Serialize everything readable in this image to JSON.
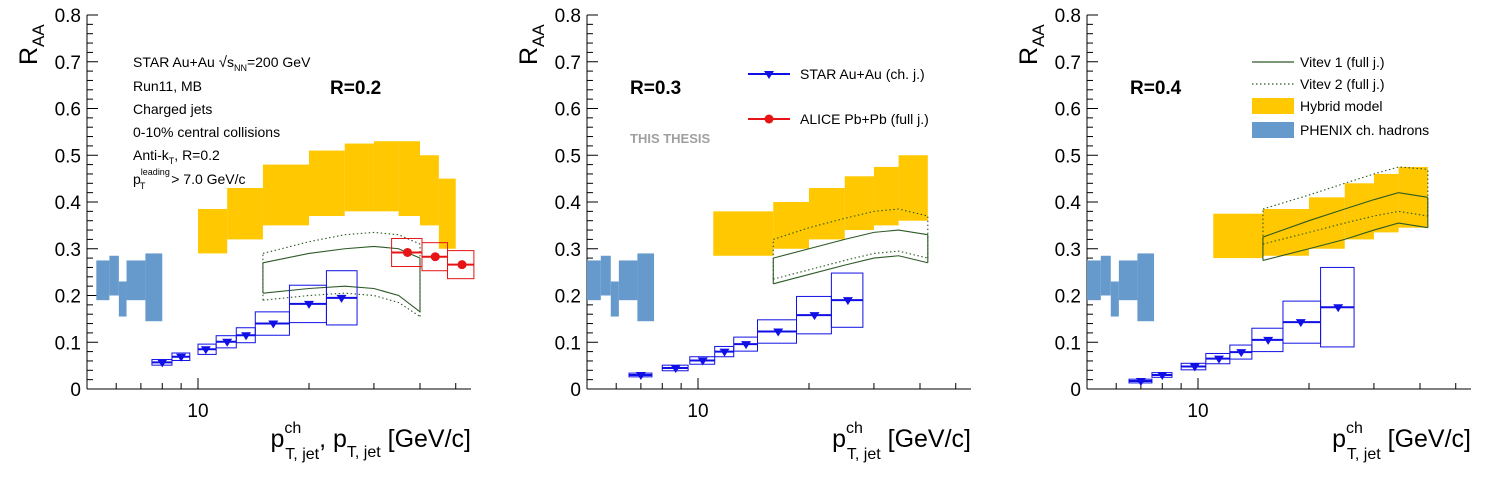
{
  "colors": {
    "star": "#1010e6",
    "alice": "#e61414",
    "hybrid": "#ffc800",
    "phenix": "#6699cc",
    "vitev": "#2d5a27",
    "thesis": "#a0a0a0"
  },
  "chart_data": [
    {
      "type": "scatter",
      "panel_label": "R=0.2",
      "xlabel_main": "p",
      "xlabel_sup": "ch",
      "xlabel_sub": "T, jet",
      "xlabel_extra": ", p",
      "xlabel_extra_sub": "T, jet",
      "xlabel_units": " [GeV/c]",
      "ylabel_main": "R",
      "ylabel_sub": "AA",
      "x_scale": "log",
      "xlim": [
        5,
        55
      ],
      "ylim": [
        0,
        0.8
      ],
      "x_tick_labels": [
        {
          "value": 10,
          "label": "10"
        }
      ],
      "y_tick_labels": [
        {
          "value": 0,
          "label": "0"
        },
        {
          "value": 0.1,
          "label": "0.1"
        },
        {
          "value": 0.2,
          "label": "0.2"
        },
        {
          "value": 0.3,
          "label": "0.3"
        },
        {
          "value": 0.4,
          "label": "0.4"
        },
        {
          "value": 0.5,
          "label": "0.5"
        },
        {
          "value": 0.6,
          "label": "0.6"
        },
        {
          "value": 0.7,
          "label": "0.7"
        },
        {
          "value": 0.8,
          "label": "0.8"
        }
      ],
      "text_lines": [
        {
          "id": "star-label",
          "text": "STAR Au+Au ",
          "sqrt": true,
          "tail": "=200 GeV"
        },
        {
          "id": "run-label",
          "text": "Run11, MB"
        },
        {
          "id": "jets-label",
          "text": "Charged jets"
        },
        {
          "id": "centrality-label",
          "text": "0-10% central collisions"
        },
        {
          "id": "algo-label",
          "text": "Anti-k",
          "sub": "T",
          "tail": ", R=0.2"
        },
        {
          "id": "leading-label",
          "text": "p",
          "sub": "T",
          "sup": "leading",
          "tail": " > 7.0 GeV/c"
        }
      ],
      "legend": [],
      "series": [
        {
          "name": "STAR Au+Au (ch. j.)",
          "kind": "points",
          "points": [
            {
              "x": 8.0,
              "xlo": 7.5,
              "xhi": 8.5,
              "y": 0.057,
              "sys": 0.006
            },
            {
              "x": 9.0,
              "xlo": 8.5,
              "xhi": 9.5,
              "y": 0.069,
              "sys": 0.008
            },
            {
              "x": 10.5,
              "xlo": 10.0,
              "xhi": 11.2,
              "y": 0.085,
              "sys": 0.011
            },
            {
              "x": 12.0,
              "xlo": 11.2,
              "xhi": 12.7,
              "y": 0.101,
              "sys": 0.013
            },
            {
              "x": 13.5,
              "xlo": 12.7,
              "xhi": 14.3,
              "y": 0.115,
              "sys": 0.016
            },
            {
              "x": 16.0,
              "xlo": 14.3,
              "xhi": 17.7,
              "y": 0.14,
              "sys": 0.025
            },
            {
              "x": 20.0,
              "xlo": 17.7,
              "xhi": 22.3,
              "y": 0.182,
              "sys": 0.04
            },
            {
              "x": 24.5,
              "xlo": 22.3,
              "xhi": 27.0,
              "y": 0.195,
              "sys": 0.058
            }
          ]
        },
        {
          "name": "ALICE Pb+Pb (full j.)",
          "kind": "points",
          "points": [
            {
              "x": 37.0,
              "xlo": 33.5,
              "xhi": 40.5,
              "y": 0.292,
              "sys": 0.03
            },
            {
              "x": 44.0,
              "xlo": 40.5,
              "xhi": 47.5,
              "y": 0.283,
              "sys": 0.03
            },
            {
              "x": 52.0,
              "xlo": 47.5,
              "xhi": 56.0,
              "y": 0.266,
              "sys": 0.03
            }
          ]
        },
        {
          "name": "Hybrid model",
          "kind": "bands",
          "bins": [
            {
              "xlo": 10,
              "xhi": 12,
              "ylo": 0.29,
              "yhi": 0.385
            },
            {
              "xlo": 12,
              "xhi": 15,
              "ylo": 0.32,
              "yhi": 0.43
            },
            {
              "xlo": 15,
              "xhi": 20,
              "ylo": 0.35,
              "yhi": 0.48
            },
            {
              "xlo": 20,
              "xhi": 25,
              "ylo": 0.37,
              "yhi": 0.51
            },
            {
              "xlo": 25,
              "xhi": 30,
              "ylo": 0.38,
              "yhi": 0.525
            },
            {
              "xlo": 30,
              "xhi": 35,
              "ylo": 0.38,
              "yhi": 0.53
            },
            {
              "xlo": 35,
              "xhi": 40,
              "ylo": 0.37,
              "yhi": 0.53
            },
            {
              "xlo": 40,
              "xhi": 45,
              "ylo": 0.35,
              "yhi": 0.5
            },
            {
              "xlo": 45,
              "xhi": 50,
              "ylo": 0.3,
              "yhi": 0.45
            }
          ]
        },
        {
          "name": "PHENIX ch. hadrons",
          "kind": "bands",
          "bins": [
            {
              "xlo": 5.3,
              "xhi": 5.75,
              "ylo": 0.19,
              "yhi": 0.275
            },
            {
              "xlo": 5.75,
              "xhi": 6.1,
              "ylo": 0.2,
              "yhi": 0.285
            },
            {
              "xlo": 6.1,
              "xhi": 6.4,
              "ylo": 0.155,
              "yhi": 0.23
            },
            {
              "xlo": 6.4,
              "xhi": 7.2,
              "ylo": 0.19,
              "yhi": 0.275
            },
            {
              "xlo": 7.2,
              "xhi": 8.0,
              "ylo": 0.145,
              "yhi": 0.29
            }
          ]
        },
        {
          "name": "Vitev 1 (full j.)",
          "kind": "curve",
          "style": "solid",
          "x": [
            15,
            20,
            25,
            30,
            35,
            40
          ],
          "lo": [
            0.205,
            0.215,
            0.22,
            0.215,
            0.2,
            0.165
          ],
          "hi": [
            0.27,
            0.29,
            0.3,
            0.305,
            0.3,
            0.28
          ]
        },
        {
          "name": "Vitev 2 (full j.)",
          "kind": "curve",
          "style": "dotted",
          "x": [
            15,
            20,
            25,
            30,
            35,
            40
          ],
          "lo": [
            0.19,
            0.2,
            0.205,
            0.2,
            0.185,
            0.155
          ],
          "hi": [
            0.29,
            0.315,
            0.33,
            0.335,
            0.33,
            0.31
          ]
        }
      ]
    },
    {
      "type": "scatter",
      "panel_label": "R=0.3",
      "xlabel_main": "p",
      "xlabel_sup": "ch",
      "xlabel_sub": "T, jet",
      "xlabel_extra": "",
      "xlabel_extra_sub": "",
      "xlabel_units": " [GeV/c]",
      "ylabel_main": "R",
      "ylabel_sub": "AA",
      "x_scale": "log",
      "xlim": [
        5,
        55
      ],
      "ylim": [
        0,
        0.8
      ],
      "x_tick_labels": [
        {
          "value": 10,
          "label": "10"
        }
      ],
      "y_tick_labels": [
        {
          "value": 0,
          "label": "0"
        },
        {
          "value": 0.1,
          "label": "0.1"
        },
        {
          "value": 0.2,
          "label": "0.2"
        },
        {
          "value": 0.3,
          "label": "0.3"
        },
        {
          "value": 0.4,
          "label": "0.4"
        },
        {
          "value": 0.5,
          "label": "0.5"
        },
        {
          "value": 0.6,
          "label": "0.6"
        },
        {
          "value": 0.7,
          "label": "0.7"
        },
        {
          "value": 0.8,
          "label": "0.8"
        }
      ],
      "text_lines": [],
      "watermark": "THIS THESIS",
      "legend": [
        {
          "series": "STAR Au+Au (ch. j.)",
          "label": "STAR Au+Au (ch. j.)",
          "marker": "star"
        },
        {
          "series": "ALICE Pb+Pb (full j.)",
          "label": "ALICE Pb+Pb (full j.)",
          "marker": "alice"
        }
      ],
      "series": [
        {
          "name": "STAR Au+Au (ch. j.)",
          "kind": "points",
          "points": [
            {
              "x": 7.0,
              "xlo": 6.5,
              "xhi": 7.5,
              "y": 0.03,
              "sys": 0.004
            },
            {
              "x": 8.7,
              "xlo": 8.0,
              "xhi": 9.4,
              "y": 0.045,
              "sys": 0.006
            },
            {
              "x": 10.3,
              "xlo": 9.5,
              "xhi": 11.1,
              "y": 0.061,
              "sys": 0.008
            },
            {
              "x": 11.8,
              "xlo": 11.1,
              "xhi": 12.5,
              "y": 0.08,
              "sys": 0.011
            },
            {
              "x": 13.5,
              "xlo": 12.5,
              "xhi": 14.5,
              "y": 0.096,
              "sys": 0.015
            },
            {
              "x": 16.5,
              "xlo": 14.5,
              "xhi": 18.5,
              "y": 0.123,
              "sys": 0.025
            },
            {
              "x": 20.7,
              "xlo": 18.5,
              "xhi": 23.0,
              "y": 0.158,
              "sys": 0.04
            },
            {
              "x": 25.5,
              "xlo": 23.0,
              "xhi": 28.0,
              "y": 0.19,
              "sys": 0.058
            }
          ]
        },
        {
          "name": "Hybrid model",
          "kind": "bands",
          "bins": [
            {
              "xlo": 11,
              "xhi": 16,
              "ylo": 0.285,
              "yhi": 0.38
            },
            {
              "xlo": 16,
              "xhi": 20,
              "ylo": 0.3,
              "yhi": 0.4
            },
            {
              "xlo": 20,
              "xhi": 25,
              "ylo": 0.32,
              "yhi": 0.43
            },
            {
              "xlo": 25,
              "xhi": 30,
              "ylo": 0.34,
              "yhi": 0.455
            },
            {
              "xlo": 30,
              "xhi": 35,
              "ylo": 0.35,
              "yhi": 0.475
            },
            {
              "xlo": 35,
              "xhi": 42,
              "ylo": 0.36,
              "yhi": 0.5
            }
          ]
        },
        {
          "name": "Vitev 1 (full j.)",
          "kind": "curve",
          "style": "solid",
          "x": [
            16,
            20,
            25,
            30,
            35,
            42
          ],
          "lo": [
            0.225,
            0.245,
            0.265,
            0.28,
            0.285,
            0.27
          ],
          "hi": [
            0.28,
            0.3,
            0.32,
            0.335,
            0.34,
            0.33
          ]
        },
        {
          "name": "Vitev 2 (full j.)",
          "kind": "curve",
          "style": "dotted",
          "x": [
            16,
            20,
            25,
            30,
            35,
            42
          ],
          "lo": [
            0.235,
            0.255,
            0.275,
            0.29,
            0.295,
            0.28
          ],
          "hi": [
            0.32,
            0.345,
            0.365,
            0.38,
            0.385,
            0.37
          ]
        },
        {
          "name": "PHENIX ch. hadrons",
          "kind": "bands",
          "bins": [
            {
              "xlo": 5.0,
              "xhi": 5.45,
              "ylo": 0.19,
              "yhi": 0.275
            },
            {
              "xlo": 5.45,
              "xhi": 5.8,
              "ylo": 0.2,
              "yhi": 0.285
            },
            {
              "xlo": 5.8,
              "xhi": 6.1,
              "ylo": 0.155,
              "yhi": 0.23
            },
            {
              "xlo": 6.1,
              "xhi": 6.85,
              "ylo": 0.19,
              "yhi": 0.275
            },
            {
              "xlo": 6.85,
              "xhi": 7.6,
              "ylo": 0.145,
              "yhi": 0.29
            }
          ]
        }
      ]
    },
    {
      "type": "scatter",
      "panel_label": "R=0.4",
      "xlabel_main": "p",
      "xlabel_sup": "ch",
      "xlabel_sub": "T, jet",
      "xlabel_extra": "",
      "xlabel_extra_sub": "",
      "xlabel_units": " [GeV/c]",
      "ylabel_main": "R",
      "ylabel_sub": "AA",
      "x_scale": "log",
      "xlim": [
        5,
        55
      ],
      "ylim": [
        0,
        0.8
      ],
      "x_tick_labels": [
        {
          "value": 10,
          "label": "10"
        }
      ],
      "y_tick_labels": [
        {
          "value": 0,
          "label": "0"
        },
        {
          "value": 0.1,
          "label": "0.1"
        },
        {
          "value": 0.2,
          "label": "0.2"
        },
        {
          "value": 0.3,
          "label": "0.3"
        },
        {
          "value": 0.4,
          "label": "0.4"
        },
        {
          "value": 0.5,
          "label": "0.5"
        },
        {
          "value": 0.6,
          "label": "0.6"
        },
        {
          "value": 0.7,
          "label": "0.7"
        },
        {
          "value": 0.8,
          "label": "0.8"
        }
      ],
      "text_lines": [],
      "legend": [
        {
          "series": "Vitev 1 (full j.)",
          "label": "Vitev 1 (full j.)",
          "marker": "solid"
        },
        {
          "series": "Vitev 2 (full j.)",
          "label": "Vitev 2 (full j.)",
          "marker": "dotted"
        },
        {
          "series": "Hybrid model",
          "label": "Hybrid model",
          "marker": "hybrid"
        },
        {
          "series": "PHENIX ch. hadrons",
          "label": "PHENIX ch. hadrons",
          "marker": "phenix"
        }
      ],
      "series": [
        {
          "name": "STAR Au+Au (ch. j.)",
          "kind": "points",
          "points": [
            {
              "x": 7.0,
              "xlo": 6.5,
              "xhi": 7.5,
              "y": 0.017,
              "sys": 0.004
            },
            {
              "x": 8.0,
              "xlo": 7.5,
              "xhi": 8.5,
              "y": 0.03,
              "sys": 0.005
            },
            {
              "x": 9.8,
              "xlo": 9.0,
              "xhi": 10.5,
              "y": 0.048,
              "sys": 0.007
            },
            {
              "x": 11.4,
              "xlo": 10.5,
              "xhi": 12.2,
              "y": 0.065,
              "sys": 0.011
            },
            {
              "x": 13.1,
              "xlo": 12.2,
              "xhi": 14.0,
              "y": 0.079,
              "sys": 0.015
            },
            {
              "x": 15.5,
              "xlo": 14.0,
              "xhi": 17.0,
              "y": 0.105,
              "sys": 0.025
            },
            {
              "x": 19.0,
              "xlo": 17.0,
              "xhi": 21.5,
              "y": 0.143,
              "sys": 0.045
            },
            {
              "x": 24.0,
              "xlo": 21.5,
              "xhi": 26.5,
              "y": 0.175,
              "sys": 0.085
            }
          ]
        },
        {
          "name": "Hybrid model",
          "kind": "bands",
          "bins": [
            {
              "xlo": 11,
              "xhi": 15,
              "ylo": 0.28,
              "yhi": 0.375
            },
            {
              "xlo": 15,
              "xhi": 20,
              "ylo": 0.285,
              "yhi": 0.385
            },
            {
              "xlo": 20,
              "xhi": 25,
              "ylo": 0.3,
              "yhi": 0.41
            },
            {
              "xlo": 25,
              "xhi": 30,
              "ylo": 0.32,
              "yhi": 0.44
            },
            {
              "xlo": 30,
              "xhi": 35,
              "ylo": 0.335,
              "yhi": 0.46
            },
            {
              "xlo": 35,
              "xhi": 42,
              "ylo": 0.345,
              "yhi": 0.475
            }
          ]
        },
        {
          "name": "Vitev 1 (full j.)",
          "kind": "curve",
          "style": "solid",
          "x": [
            15,
            20,
            25,
            30,
            35,
            42
          ],
          "lo": [
            0.275,
            0.3,
            0.32,
            0.34,
            0.355,
            0.345
          ],
          "hi": [
            0.325,
            0.36,
            0.385,
            0.405,
            0.42,
            0.41
          ]
        },
        {
          "name": "Vitev 2 (full j.)",
          "kind": "curve",
          "style": "dotted",
          "x": [
            15,
            20,
            25,
            30,
            35,
            42
          ],
          "lo": [
            0.31,
            0.335,
            0.355,
            0.37,
            0.38,
            0.37
          ],
          "hi": [
            0.385,
            0.415,
            0.44,
            0.46,
            0.475,
            0.47
          ]
        },
        {
          "name": "PHENIX ch. hadrons",
          "kind": "bands",
          "bins": [
            {
              "xlo": 5.0,
              "xhi": 5.45,
              "ylo": 0.19,
              "yhi": 0.275
            },
            {
              "xlo": 5.45,
              "xhi": 5.8,
              "ylo": 0.2,
              "yhi": 0.285
            },
            {
              "xlo": 5.8,
              "xhi": 6.1,
              "ylo": 0.155,
              "yhi": 0.23
            },
            {
              "xlo": 6.1,
              "xhi": 6.85,
              "ylo": 0.19,
              "yhi": 0.275
            },
            {
              "xlo": 6.85,
              "xhi": 7.6,
              "ylo": 0.145,
              "yhi": 0.29
            }
          ]
        }
      ]
    }
  ]
}
